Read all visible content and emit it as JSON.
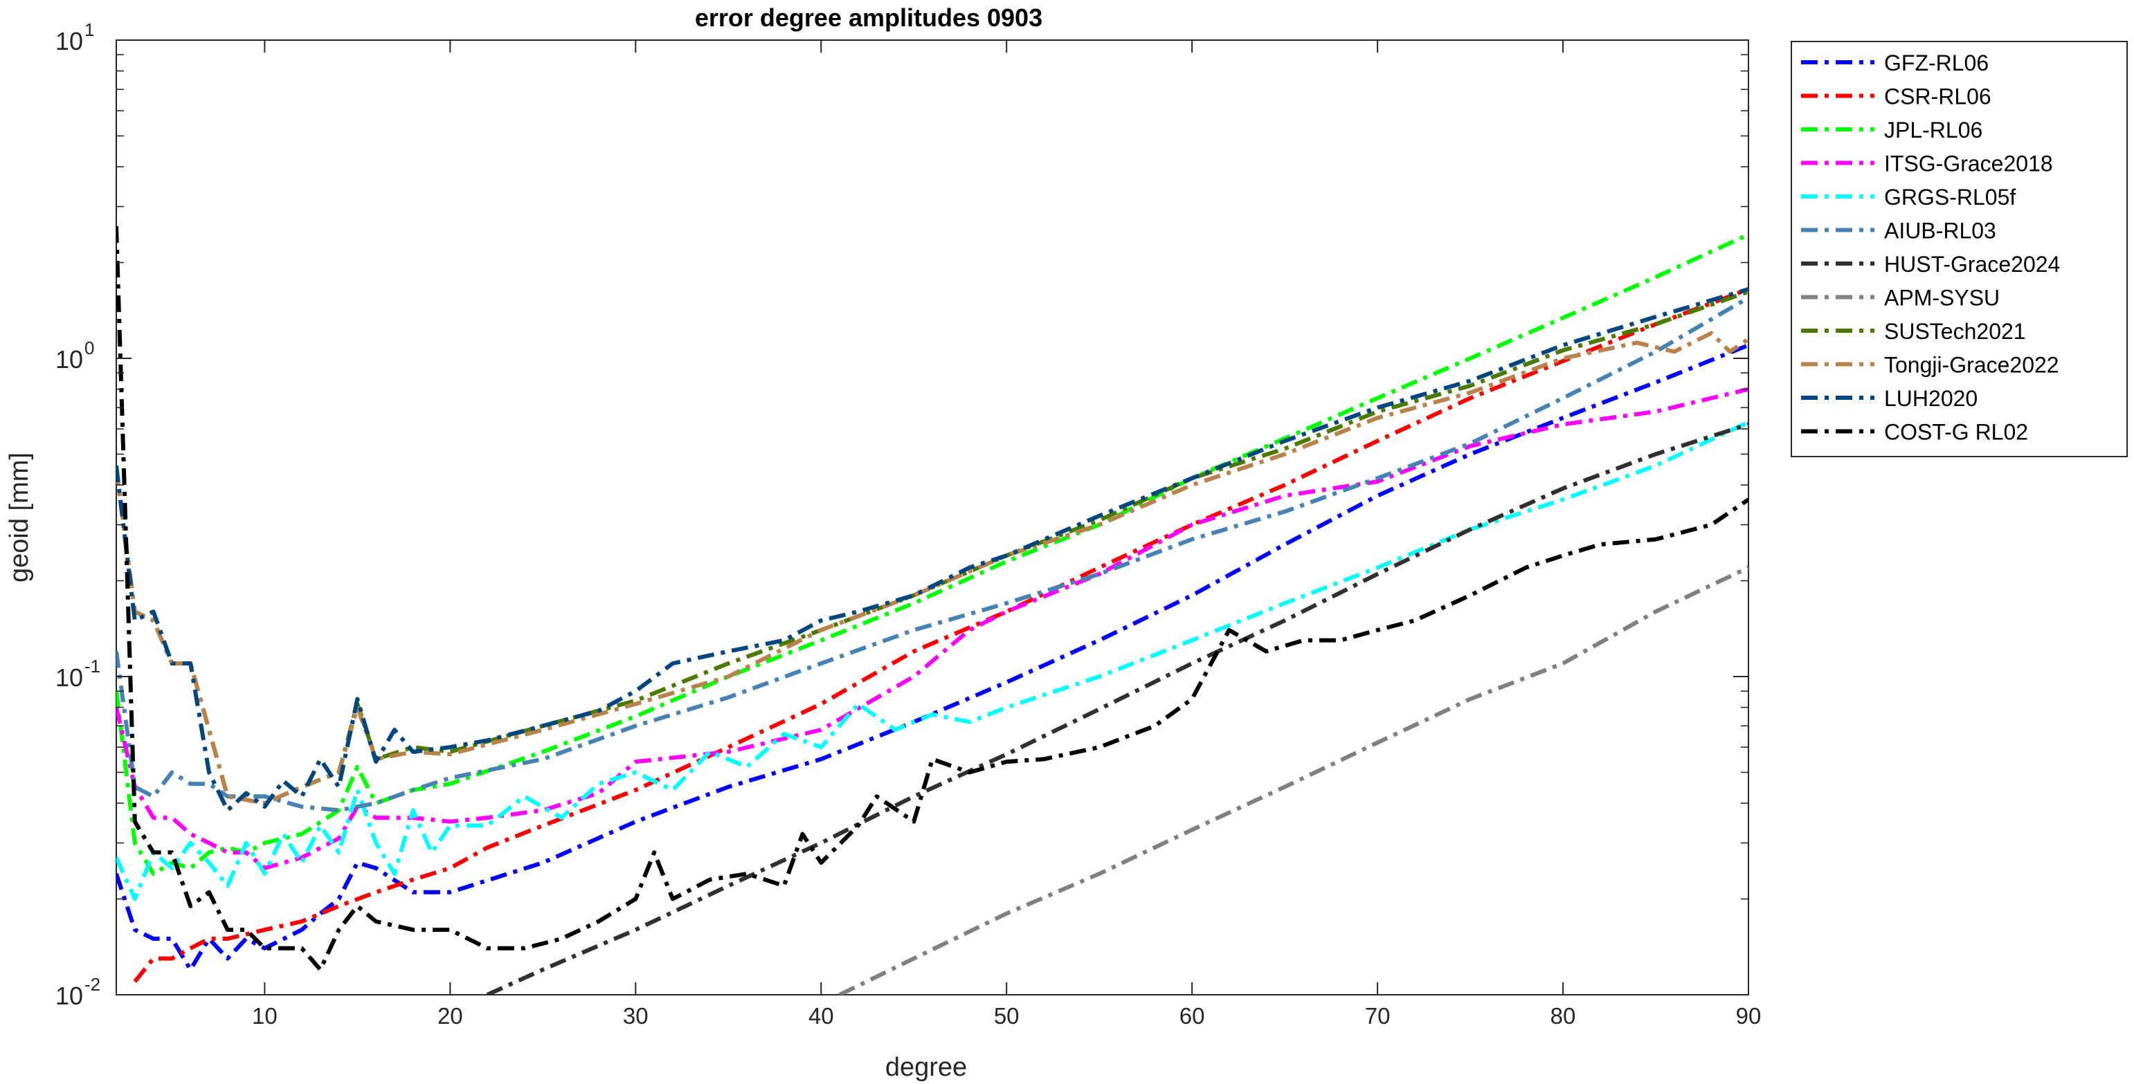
{
  "chart_data": {
    "type": "line",
    "title": "error degree amplitudes 0903",
    "xlabel": "degree",
    "ylabel": "geoid [mm]",
    "xlim": [
      2,
      90
    ],
    "ylim": [
      0.01,
      10
    ],
    "yscale": "log",
    "x_ticks": [
      10,
      20,
      30,
      40,
      50,
      60,
      70,
      80,
      90
    ],
    "x_tick_labels": [
      "10",
      "20",
      "30",
      "40",
      "50",
      "60",
      "70",
      "80",
      "90"
    ],
    "y_ticks": [
      0.01,
      0.1,
      1,
      10
    ],
    "y_tick_bases": [
      "10",
      "10",
      "10",
      "10"
    ],
    "y_tick_exponents": [
      "-2",
      "-1",
      "0",
      "1"
    ],
    "grid": false,
    "legend_position": "outside-top-right",
    "line_style": "dash-dot",
    "series": [
      {
        "name": "GFZ-RL06",
        "color": "#0000ff",
        "x": [
          2,
          3,
          4,
          5,
          6,
          7,
          8,
          9,
          10,
          12,
          13,
          14,
          15,
          16,
          18,
          20,
          25,
          30,
          35,
          40,
          45,
          50,
          55,
          60,
          65,
          70,
          75,
          80,
          85,
          90
        ],
        "y": [
          0.024,
          0.016,
          0.015,
          0.015,
          0.012,
          0.015,
          0.013,
          0.015,
          0.014,
          0.016,
          0.018,
          0.02,
          0.026,
          0.025,
          0.021,
          0.021,
          0.026,
          0.035,
          0.045,
          0.055,
          0.072,
          0.096,
          0.13,
          0.18,
          0.26,
          0.37,
          0.5,
          0.65,
          0.84,
          1.1
        ]
      },
      {
        "name": "CSR-RL06",
        "color": "#ff0000",
        "x": [
          3,
          4,
          5,
          6,
          7,
          8,
          10,
          12,
          14,
          16,
          18,
          20,
          22,
          25,
          30,
          35,
          40,
          45,
          50,
          55,
          60,
          65,
          70,
          75,
          80,
          85,
          90
        ],
        "y": [
          0.011,
          0.013,
          0.013,
          0.014,
          0.015,
          0.015,
          0.016,
          0.017,
          0.019,
          0.021,
          0.023,
          0.025,
          0.029,
          0.034,
          0.044,
          0.06,
          0.082,
          0.12,
          0.16,
          0.22,
          0.3,
          0.4,
          0.55,
          0.75,
          0.98,
          1.28,
          1.65
        ]
      },
      {
        "name": "JPL-RL06",
        "color": "#00ff00",
        "x": [
          2,
          3,
          4,
          5,
          6,
          7,
          8,
          9,
          10,
          12,
          14,
          15,
          16,
          18,
          20,
          25,
          30,
          35,
          40,
          45,
          50,
          55,
          60,
          65,
          70,
          75,
          80,
          85,
          90
        ],
        "y": [
          0.09,
          0.03,
          0.024,
          0.026,
          0.025,
          0.028,
          0.029,
          0.028,
          0.03,
          0.032,
          0.038,
          0.052,
          0.04,
          0.044,
          0.046,
          0.058,
          0.075,
          0.1,
          0.13,
          0.17,
          0.23,
          0.3,
          0.42,
          0.56,
          0.75,
          1.0,
          1.34,
          1.8,
          2.45
        ]
      },
      {
        "name": "ITSG-Grace2018",
        "color": "#ff00ff",
        "x": [
          2,
          3,
          4,
          5,
          6,
          7,
          8,
          9,
          10,
          12,
          14,
          15,
          16,
          18,
          20,
          22,
          25,
          28,
          30,
          35,
          40,
          45,
          48,
          50,
          55,
          60,
          65,
          70,
          75,
          80,
          85,
          90
        ],
        "y": [
          0.08,
          0.045,
          0.036,
          0.036,
          0.032,
          0.03,
          0.028,
          0.028,
          0.025,
          0.027,
          0.031,
          0.039,
          0.036,
          0.036,
          0.035,
          0.036,
          0.038,
          0.043,
          0.054,
          0.058,
          0.068,
          0.1,
          0.14,
          0.16,
          0.21,
          0.3,
          0.37,
          0.41,
          0.53,
          0.62,
          0.68,
          0.8
        ]
      },
      {
        "name": "GRGS-RL05f",
        "color": "#00ffff",
        "x": [
          2,
          3,
          4,
          5,
          6,
          7,
          8,
          9,
          10,
          11,
          12,
          13,
          14,
          15,
          16,
          17,
          18,
          19,
          20,
          22,
          24,
          26,
          28,
          30,
          32,
          34,
          36,
          38,
          40,
          42,
          44,
          46,
          48,
          50,
          55,
          60,
          65,
          70,
          75,
          80,
          85,
          90
        ],
        "y": [
          0.027,
          0.02,
          0.028,
          0.025,
          0.03,
          0.026,
          0.022,
          0.03,
          0.024,
          0.032,
          0.026,
          0.034,
          0.028,
          0.044,
          0.03,
          0.024,
          0.038,
          0.028,
          0.034,
          0.034,
          0.042,
          0.036,
          0.046,
          0.05,
          0.044,
          0.058,
          0.052,
          0.066,
          0.06,
          0.082,
          0.068,
          0.076,
          0.072,
          0.08,
          0.1,
          0.13,
          0.17,
          0.22,
          0.29,
          0.36,
          0.46,
          0.63
        ]
      },
      {
        "name": "AIUB-RL03",
        "color": "#4682b4",
        "x": [
          2,
          3,
          4,
          5,
          6,
          7,
          8,
          10,
          12,
          14,
          16,
          18,
          20,
          25,
          30,
          35,
          40,
          45,
          50,
          55,
          60,
          65,
          70,
          75,
          80,
          85,
          90
        ],
        "y": [
          0.12,
          0.045,
          0.042,
          0.05,
          0.046,
          0.046,
          0.042,
          0.042,
          0.039,
          0.038,
          0.04,
          0.044,
          0.048,
          0.055,
          0.07,
          0.086,
          0.11,
          0.14,
          0.17,
          0.21,
          0.27,
          0.33,
          0.42,
          0.54,
          0.75,
          1.05,
          1.55
        ]
      },
      {
        "name": "HUST-Grace2024",
        "color": "#303030",
        "x": [
          22,
          25,
          30,
          35,
          40,
          45,
          50,
          55,
          60,
          65,
          70,
          75,
          80,
          85,
          90
        ],
        "y": [
          0.01,
          0.012,
          0.016,
          0.022,
          0.03,
          0.042,
          0.057,
          0.079,
          0.11,
          0.15,
          0.21,
          0.29,
          0.39,
          0.5,
          0.62
        ]
      },
      {
        "name": "APM-SYSU",
        "color": "#808080",
        "x": [
          41,
          45,
          50,
          55,
          60,
          65,
          70,
          75,
          80,
          85,
          90
        ],
        "y": [
          0.01,
          0.013,
          0.018,
          0.024,
          0.033,
          0.045,
          0.062,
          0.085,
          0.11,
          0.16,
          0.22
        ]
      },
      {
        "name": "SUSTech2021",
        "color": "#4a7a00",
        "x": [
          2,
          3,
          4,
          5,
          6,
          8,
          10,
          12,
          14,
          15,
          16,
          18,
          20,
          25,
          30,
          35,
          40,
          45,
          50,
          55,
          60,
          65,
          70,
          75,
          80,
          85,
          90
        ],
        "y": [
          0.45,
          0.16,
          0.15,
          0.11,
          0.11,
          0.042,
          0.04,
          0.045,
          0.05,
          0.082,
          0.055,
          0.06,
          0.058,
          0.07,
          0.084,
          0.11,
          0.14,
          0.18,
          0.24,
          0.31,
          0.42,
          0.52,
          0.68,
          0.82,
          1.06,
          1.28,
          1.62
        ]
      },
      {
        "name": "Tongji-Grace2022",
        "color": "#b8824a",
        "x": [
          2,
          3,
          4,
          5,
          6,
          8,
          10,
          12,
          14,
          15,
          16,
          18,
          20,
          25,
          30,
          35,
          40,
          45,
          50,
          55,
          60,
          65,
          70,
          75,
          80,
          84,
          86,
          88,
          89,
          90
        ],
        "y": [
          0.45,
          0.16,
          0.15,
          0.11,
          0.11,
          0.042,
          0.04,
          0.045,
          0.05,
          0.08,
          0.055,
          0.058,
          0.057,
          0.068,
          0.082,
          0.1,
          0.14,
          0.18,
          0.24,
          0.3,
          0.4,
          0.5,
          0.65,
          0.78,
          1.0,
          1.12,
          1.05,
          1.2,
          1.05,
          1.15
        ]
      },
      {
        "name": "LUH2020",
        "color": "#004680",
        "x": [
          2,
          3,
          4,
          5,
          6,
          7,
          8,
          9,
          10,
          11,
          12,
          13,
          14,
          15,
          16,
          17,
          18,
          20,
          22,
          25,
          28,
          30,
          32,
          35,
          38,
          40,
          42,
          45,
          48,
          50,
          55,
          60,
          65,
          70,
          75,
          80,
          85,
          90
        ],
        "y": [
          0.46,
          0.15,
          0.16,
          0.11,
          0.11,
          0.05,
          0.038,
          0.043,
          0.039,
          0.047,
          0.042,
          0.055,
          0.045,
          0.085,
          0.054,
          0.068,
          0.058,
          0.06,
          0.063,
          0.07,
          0.078,
          0.09,
          0.11,
          0.12,
          0.13,
          0.15,
          0.16,
          0.18,
          0.22,
          0.24,
          0.32,
          0.42,
          0.55,
          0.7,
          0.85,
          1.1,
          1.35,
          1.65
        ]
      },
      {
        "name": "COST-G RL02",
        "color": "#000000",
        "x": [
          2,
          3,
          4,
          5,
          6,
          7,
          8,
          9,
          10,
          11,
          12,
          13,
          14,
          15,
          16,
          18,
          20,
          22,
          24,
          26,
          28,
          30,
          31,
          32,
          34,
          36,
          38,
          39,
          40,
          42,
          43,
          45,
          46,
          48,
          50,
          52,
          55,
          58,
          60,
          62,
          64,
          66,
          68,
          70,
          72,
          75,
          78,
          80,
          82,
          85,
          88,
          90
        ],
        "y": [
          2.6,
          0.035,
          0.028,
          0.028,
          0.019,
          0.021,
          0.016,
          0.016,
          0.014,
          0.014,
          0.014,
          0.012,
          0.016,
          0.019,
          0.017,
          0.016,
          0.016,
          0.014,
          0.014,
          0.015,
          0.017,
          0.02,
          0.028,
          0.02,
          0.023,
          0.024,
          0.022,
          0.032,
          0.026,
          0.034,
          0.042,
          0.035,
          0.055,
          0.05,
          0.054,
          0.055,
          0.06,
          0.07,
          0.085,
          0.14,
          0.12,
          0.13,
          0.13,
          0.14,
          0.15,
          0.18,
          0.22,
          0.24,
          0.26,
          0.27,
          0.3,
          0.36
        ]
      }
    ]
  }
}
